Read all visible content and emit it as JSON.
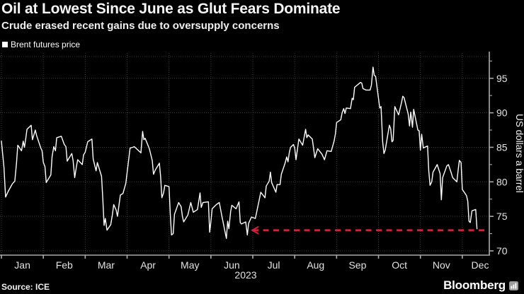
{
  "header": {
    "title": "Oil at Lowest Since June as Glut Fears Dominate",
    "subtitle": "Crude erased recent gains due to oversupply concerns"
  },
  "legend": {
    "label": "Brent futures price",
    "marker_color": "#ffffff"
  },
  "footer": {
    "source": "Source: ICE",
    "brand": "Bloomberg"
  },
  "colors": {
    "background": "#000000",
    "price_line": "#ffffff",
    "annotation_red": "#d2203f",
    "gridline": "#3e3e3e",
    "axis": "#a9a9a9"
  },
  "chart_data": {
    "type": "line",
    "title": "Oil at Lowest Since June as Glut Fears Dominate",
    "subtitle": "Crude erased recent gains due to oversupply concerns",
    "ylabel": "US dollars a barrel",
    "xlabel": "",
    "x_tick_labels": [
      "Jan",
      "Feb",
      "Mar",
      "Apr",
      "May",
      "Jun",
      "Jul",
      "Aug",
      "Sep",
      "Oct",
      "Nov",
      "Dec"
    ],
    "x_axis_year": "2023",
    "y_ticks": [
      70,
      75,
      80,
      85,
      90,
      95
    ],
    "y_tick_labels": [
      "70",
      "75",
      "80",
      "85",
      "90",
      "95"
    ],
    "y_minor_ticks": [
      72.5,
      77.5,
      82.5,
      87.5,
      92.5,
      97.5
    ],
    "ylim": [
      69.4,
      98.2
    ],
    "grid": true,
    "legend_position": "top-left",
    "annotation": {
      "type": "dashed-line-left-arrow",
      "meaning": "current price back at late-June level",
      "value": 73.0,
      "x_start_month": 6.0,
      "x_end_month": 11.6,
      "color": "#d2203f"
    },
    "series": [
      {
        "name": "Brent futures price",
        "color": "#ffffff",
        "points": [
          [
            0.0,
            85.9
          ],
          [
            0.06,
            82.1
          ],
          [
            0.1,
            77.8
          ],
          [
            0.16,
            78.6
          ],
          [
            0.26,
            79.7
          ],
          [
            0.32,
            80.1
          ],
          [
            0.36,
            82.7
          ],
          [
            0.39,
            85.3
          ],
          [
            0.48,
            84.5
          ],
          [
            0.52,
            85.9
          ],
          [
            0.55,
            85.0
          ],
          [
            0.58,
            86.2
          ],
          [
            0.61,
            87.6
          ],
          [
            0.71,
            88.2
          ],
          [
            0.74,
            86.1
          ],
          [
            0.81,
            87.5
          ],
          [
            0.84,
            86.7
          ],
          [
            0.94,
            84.9
          ],
          [
            0.97,
            84.5
          ],
          [
            1.0,
            82.8
          ],
          [
            1.04,
            82.2
          ],
          [
            1.07,
            79.9
          ],
          [
            1.18,
            81.0
          ],
          [
            1.21,
            83.7
          ],
          [
            1.25,
            85.1
          ],
          [
            1.29,
            84.5
          ],
          [
            1.32,
            86.4
          ],
          [
            1.43,
            86.6
          ],
          [
            1.5,
            85.4
          ],
          [
            1.54,
            85.1
          ],
          [
            1.57,
            83.0
          ],
          [
            1.68,
            84.1
          ],
          [
            1.71,
            83.1
          ],
          [
            1.75,
            80.6
          ],
          [
            1.79,
            82.2
          ],
          [
            1.82,
            83.2
          ],
          [
            1.93,
            82.5
          ],
          [
            1.96,
            83.9
          ],
          [
            2.0,
            84.3
          ],
          [
            2.06,
            85.8
          ],
          [
            2.16,
            86.2
          ],
          [
            2.19,
            83.3
          ],
          [
            2.26,
            81.6
          ],
          [
            2.29,
            82.8
          ],
          [
            2.39,
            80.8
          ],
          [
            2.42,
            77.5
          ],
          [
            2.45,
            73.7
          ],
          [
            2.48,
            74.7
          ],
          [
            2.52,
            73.0
          ],
          [
            2.61,
            73.8
          ],
          [
            2.65,
            75.3
          ],
          [
            2.68,
            76.7
          ],
          [
            2.74,
            75.9
          ],
          [
            2.77,
            75.0
          ],
          [
            2.84,
            78.1
          ],
          [
            2.9,
            78.3
          ],
          [
            2.97,
            79.8
          ],
          [
            3.07,
            84.9
          ],
          [
            3.13,
            85.0
          ],
          [
            3.17,
            85.1
          ],
          [
            3.33,
            84.2
          ],
          [
            3.37,
            87.3
          ],
          [
            3.4,
            86.1
          ],
          [
            3.43,
            86.3
          ],
          [
            3.53,
            84.8
          ],
          [
            3.6,
            83.1
          ],
          [
            3.63,
            81.1
          ],
          [
            3.67,
            81.7
          ],
          [
            3.77,
            82.7
          ],
          [
            3.8,
            80.8
          ],
          [
            3.83,
            77.7
          ],
          [
            3.87,
            78.4
          ],
          [
            3.9,
            79.5
          ],
          [
            4.0,
            79.3
          ],
          [
            4.03,
            75.3
          ],
          [
            4.06,
            72.3
          ],
          [
            4.1,
            72.5
          ],
          [
            4.13,
            75.3
          ],
          [
            4.23,
            77.0
          ],
          [
            4.29,
            76.4
          ],
          [
            4.32,
            75.0
          ],
          [
            4.35,
            74.2
          ],
          [
            4.45,
            75.2
          ],
          [
            4.52,
            77.0
          ],
          [
            4.58,
            75.6
          ],
          [
            4.68,
            76.0
          ],
          [
            4.74,
            78.4
          ],
          [
            4.77,
            76.3
          ],
          [
            4.81,
            77.0
          ],
          [
            4.94,
            77.1
          ],
          [
            4.97,
            72.7
          ],
          [
            5.0,
            74.3
          ],
          [
            5.03,
            76.1
          ],
          [
            5.13,
            76.7
          ],
          [
            5.2,
            77.0
          ],
          [
            5.27,
            74.8
          ],
          [
            5.37,
            71.8
          ],
          [
            5.4,
            74.3
          ],
          [
            5.43,
            73.2
          ],
          [
            5.47,
            75.7
          ],
          [
            5.5,
            76.6
          ],
          [
            5.6,
            76.1
          ],
          [
            5.67,
            77.1
          ],
          [
            5.7,
            74.1
          ],
          [
            5.73,
            73.9
          ],
          [
            5.83,
            74.2
          ],
          [
            5.87,
            72.3
          ],
          [
            5.9,
            74.0
          ],
          [
            5.97,
            74.9
          ],
          [
            6.06,
            74.7
          ],
          [
            6.13,
            76.7
          ],
          [
            6.19,
            78.5
          ],
          [
            6.29,
            77.7
          ],
          [
            6.32,
            79.4
          ],
          [
            6.39,
            80.1
          ],
          [
            6.42,
            81.4
          ],
          [
            6.45,
            79.9
          ],
          [
            6.55,
            78.5
          ],
          [
            6.58,
            79.6
          ],
          [
            6.65,
            79.6
          ],
          [
            6.68,
            81.1
          ],
          [
            6.77,
            82.7
          ],
          [
            6.81,
            83.6
          ],
          [
            6.84,
            82.9
          ],
          [
            6.87,
            84.2
          ],
          [
            6.9,
            85.0
          ],
          [
            6.97,
            85.4
          ],
          [
            7.0,
            84.9
          ],
          [
            7.03,
            83.2
          ],
          [
            7.1,
            86.2
          ],
          [
            7.19,
            85.3
          ],
          [
            7.26,
            87.6
          ],
          [
            7.29,
            86.4
          ],
          [
            7.32,
            86.8
          ],
          [
            7.42,
            86.2
          ],
          [
            7.45,
            84.9
          ],
          [
            7.48,
            83.5
          ],
          [
            7.55,
            84.8
          ],
          [
            7.65,
            84.0
          ],
          [
            7.71,
            83.2
          ],
          [
            7.77,
            84.5
          ],
          [
            7.87,
            84.4
          ],
          [
            7.94,
            85.9
          ],
          [
            7.97,
            86.9
          ],
          [
            8.0,
            88.6
          ],
          [
            8.1,
            89.0
          ],
          [
            8.13,
            90.0
          ],
          [
            8.17,
            90.6
          ],
          [
            8.2,
            89.9
          ],
          [
            8.23,
            90.7
          ],
          [
            8.33,
            90.6
          ],
          [
            8.37,
            92.1
          ],
          [
            8.4,
            91.9
          ],
          [
            8.43,
            93.7
          ],
          [
            8.47,
            93.9
          ],
          [
            8.57,
            94.4
          ],
          [
            8.6,
            94.3
          ],
          [
            8.63,
            93.5
          ],
          [
            8.7,
            93.3
          ],
          [
            8.8,
            93.3
          ],
          [
            8.83,
            94.0
          ],
          [
            8.87,
            96.6
          ],
          [
            8.9,
            95.4
          ],
          [
            8.93,
            95.3
          ],
          [
            9.03,
            90.7
          ],
          [
            9.06,
            90.9
          ],
          [
            9.1,
            85.8
          ],
          [
            9.13,
            84.1
          ],
          [
            9.16,
            84.6
          ],
          [
            9.26,
            88.2
          ],
          [
            9.29,
            87.7
          ],
          [
            9.32,
            85.8
          ],
          [
            9.35,
            86.0
          ],
          [
            9.39,
            90.9
          ],
          [
            9.48,
            89.7
          ],
          [
            9.55,
            91.5
          ],
          [
            9.58,
            92.4
          ],
          [
            9.61,
            92.2
          ],
          [
            9.71,
            89.8
          ],
          [
            9.74,
            88.1
          ],
          [
            9.77,
            90.1
          ],
          [
            9.81,
            87.9
          ],
          [
            9.84,
            90.5
          ],
          [
            9.94,
            87.5
          ],
          [
            9.97,
            87.4
          ],
          [
            10.0,
            84.6
          ],
          [
            10.03,
            86.9
          ],
          [
            10.07,
            84.9
          ],
          [
            10.17,
            85.2
          ],
          [
            10.2,
            81.6
          ],
          [
            10.23,
            79.5
          ],
          [
            10.27,
            80.0
          ],
          [
            10.3,
            81.4
          ],
          [
            10.4,
            82.5
          ],
          [
            10.47,
            81.2
          ],
          [
            10.5,
            77.4
          ],
          [
            10.53,
            80.6
          ],
          [
            10.63,
            82.3
          ],
          [
            10.67,
            82.5
          ],
          [
            10.73,
            81.4
          ],
          [
            10.77,
            80.6
          ],
          [
            10.87,
            80.0
          ],
          [
            10.9,
            81.7
          ],
          [
            10.93,
            83.1
          ],
          [
            10.97,
            82.8
          ],
          [
            11.0,
            78.9
          ],
          [
            11.1,
            78.0
          ],
          [
            11.13,
            77.2
          ],
          [
            11.16,
            74.3
          ],
          [
            11.19,
            74.1
          ],
          [
            11.23,
            75.8
          ],
          [
            11.32,
            76.0
          ],
          [
            11.35,
            73.2
          ]
        ]
      }
    ]
  }
}
